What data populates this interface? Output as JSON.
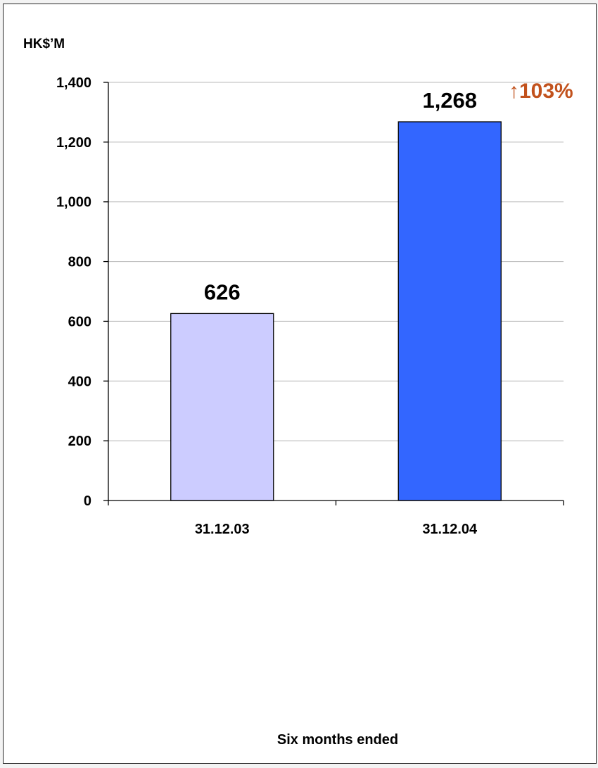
{
  "chart_data": {
    "type": "bar",
    "unit_label": "HK$’M",
    "categories": [
      "31.12.03",
      "31.12.04"
    ],
    "values": [
      626,
      1268
    ],
    "value_labels": [
      "626",
      "1,268"
    ],
    "xlabel": "Six months ended",
    "ylim": [
      0,
      1400
    ],
    "yticks": [
      0,
      200,
      400,
      600,
      800,
      1000,
      1200,
      1400
    ],
    "ytick_labels": [
      "0",
      "200",
      "400",
      "600",
      "800",
      "1,000",
      "1,200",
      "1,400"
    ],
    "grid": true,
    "bar_colors": [
      "#ccccff",
      "#3366ff"
    ],
    "annotation": {
      "arrow": "↑",
      "text": "103%",
      "color": "#c2521d"
    }
  }
}
